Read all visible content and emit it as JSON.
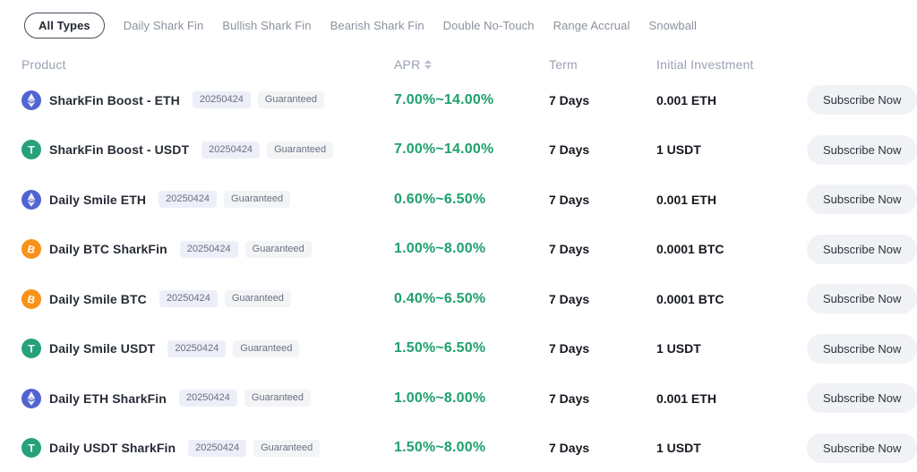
{
  "filter_tabs": [
    {
      "label": "All Types",
      "active": true
    },
    {
      "label": "Daily Shark Fin",
      "active": false
    },
    {
      "label": "Bullish Shark Fin",
      "active": false
    },
    {
      "label": "Bearish Shark Fin",
      "active": false
    },
    {
      "label": "Double No-Touch",
      "active": false
    },
    {
      "label": "Range Accrual",
      "active": false
    },
    {
      "label": "Snowball",
      "active": false
    }
  ],
  "table": {
    "headers": {
      "product": "Product",
      "apr": "APR",
      "term": "Term",
      "investment": "Initial Investment"
    },
    "subscribe_label": "Subscribe Now",
    "rows": [
      {
        "coin": "eth",
        "name": "SharkFin Boost - ETH",
        "date": "20250424",
        "tag": "Guaranteed",
        "apr": "7.00%~14.00%",
        "term": "7 Days",
        "investment": "0.001 ETH"
      },
      {
        "coin": "usdt",
        "name": "SharkFin Boost - USDT",
        "date": "20250424",
        "tag": "Guaranteed",
        "apr": "7.00%~14.00%",
        "term": "7 Days",
        "investment": "1 USDT"
      },
      {
        "coin": "eth",
        "name": "Daily Smile ETH",
        "date": "20250424",
        "tag": "Guaranteed",
        "apr": "0.60%~6.50%",
        "term": "7 Days",
        "investment": "0.001 ETH"
      },
      {
        "coin": "btc",
        "name": "Daily BTC SharkFin",
        "date": "20250424",
        "tag": "Guaranteed",
        "apr": "1.00%~8.00%",
        "term": "7 Days",
        "investment": "0.0001 BTC"
      },
      {
        "coin": "btc",
        "name": "Daily Smile BTC",
        "date": "20250424",
        "tag": "Guaranteed",
        "apr": "0.40%~6.50%",
        "term": "7 Days",
        "investment": "0.0001 BTC"
      },
      {
        "coin": "usdt",
        "name": "Daily Smile USDT",
        "date": "20250424",
        "tag": "Guaranteed",
        "apr": "1.50%~6.50%",
        "term": "7 Days",
        "investment": "1 USDT"
      },
      {
        "coin": "eth",
        "name": "Daily ETH SharkFin",
        "date": "20250424",
        "tag": "Guaranteed",
        "apr": "1.00%~8.00%",
        "term": "7 Days",
        "investment": "0.001 ETH"
      },
      {
        "coin": "usdt",
        "name": "Daily USDT SharkFin",
        "date": "20250424",
        "tag": "Guaranteed",
        "apr": "1.50%~8.00%",
        "term": "7 Days",
        "investment": "1 USDT"
      }
    ]
  },
  "colors": {
    "apr_green": "#1fa06e",
    "eth_coin": "#5064d2",
    "usdt_coin": "#26a17b",
    "btc_coin": "#f7931a"
  }
}
